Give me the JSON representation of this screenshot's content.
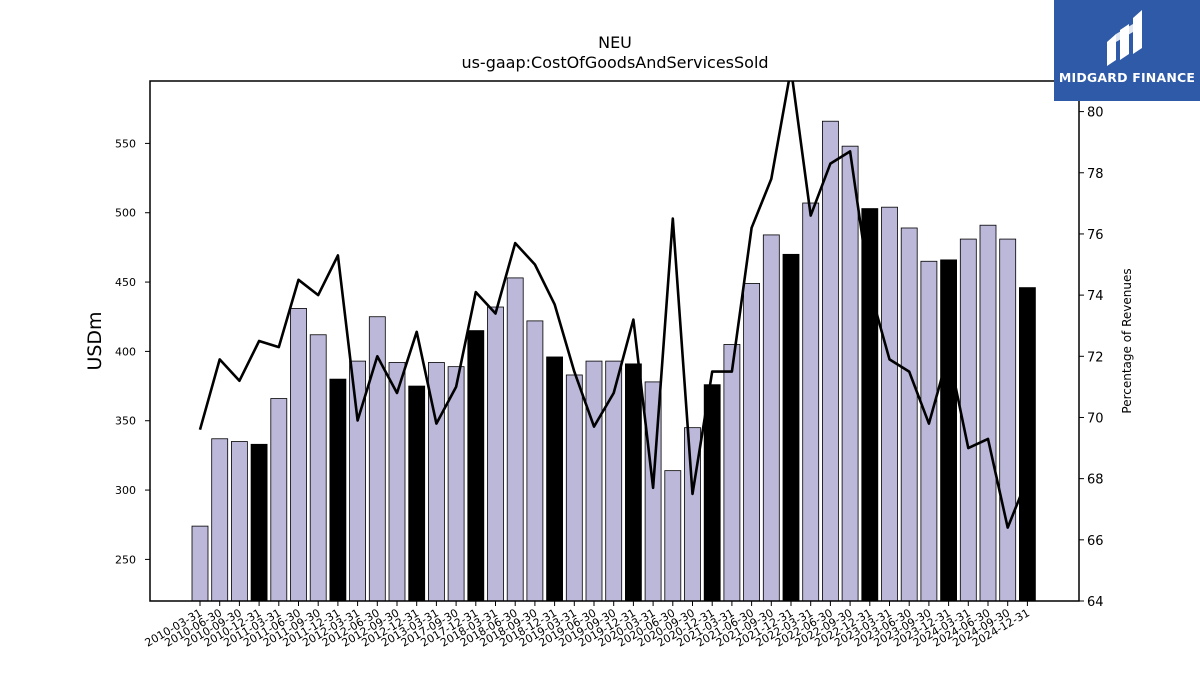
{
  "chart_data": {
    "type": "bar",
    "title": "NEU",
    "subtitle": "us-gaap:CostOfGoodsAndServicesSold",
    "ylabel": "USDm",
    "y2label": "Percentage of Revenues",
    "ylim": [
      220,
      595
    ],
    "y2lim": [
      64,
      81
    ],
    "yticks": [
      250,
      300,
      350,
      400,
      450,
      500,
      550
    ],
    "y2ticks": [
      64,
      66,
      68,
      70,
      72,
      74,
      76,
      78,
      80
    ],
    "categories": [
      "2010-03-31",
      "2010-06-30",
      "2010-09-30",
      "2010-12-31",
      "2011-03-31",
      "2011-06-30",
      "2011-09-30",
      "2011-12-31",
      "2012-03-31",
      "2012-06-30",
      "2012-09-30",
      "2012-12-31",
      "2013-03-31",
      "2017-09-30",
      "2017-12-31",
      "2018-03-31",
      "2018-06-30",
      "2018-09-30",
      "2018-12-31",
      "2019-03-31",
      "2019-06-30",
      "2019-09-30",
      "2019-12-31",
      "2020-03-31",
      "2020-06-30",
      "2020-09-30",
      "2020-12-31",
      "2021-03-31",
      "2021-06-30",
      "2021-09-30",
      "2021-12-31",
      "2022-03-31",
      "2022-06-30",
      "2022-09-30",
      "2022-12-31",
      "2023-03-31",
      "2023-06-30",
      "2023-09-30",
      "2023-12-31",
      "2024-03-31",
      "2024-06-30",
      "2024-09-30",
      "2024-12-31"
    ],
    "series": [
      {
        "kind": "bar",
        "values": [
          274,
          337,
          335,
          333,
          366,
          431,
          412,
          380,
          393,
          425,
          392,
          375,
          392,
          389,
          415,
          432,
          453,
          422,
          396,
          383,
          393,
          393,
          391,
          378,
          314,
          345,
          376,
          405,
          449,
          484,
          470,
          507,
          566,
          548,
          503,
          504,
          489,
          465,
          466,
          481,
          491,
          481,
          446
        ],
        "highlight": [
          false,
          false,
          false,
          true,
          false,
          false,
          false,
          true,
          false,
          false,
          false,
          true,
          false,
          false,
          true,
          false,
          false,
          false,
          true,
          false,
          false,
          false,
          true,
          false,
          false,
          false,
          true,
          false,
          false,
          false,
          true,
          false,
          false,
          false,
          true,
          false,
          false,
          false,
          true,
          false,
          false,
          false,
          true
        ]
      },
      {
        "kind": "line",
        "axis": "right",
        "values": [
          69.6,
          71.9,
          71.2,
          72.5,
          72.3,
          74.5,
          74.0,
          75.3,
          69.9,
          72.0,
          70.8,
          72.8,
          69.8,
          71.0,
          74.1,
          73.4,
          75.7,
          75.0,
          73.7,
          71.5,
          69.7,
          70.8,
          73.2,
          67.7,
          76.5,
          67.5,
          71.5,
          71.5,
          76.2,
          77.8,
          81.4,
          76.6,
          78.3,
          78.7,
          74.2,
          71.9,
          71.5,
          69.8,
          72.1,
          69.0,
          69.3,
          66.4,
          68.0
        ]
      }
    ],
    "colors": {
      "bar": "#bcb8d9",
      "bar_highlight": "#000000",
      "line": "#000000"
    },
    "grid": false
  },
  "logo": {
    "text": "MIDGARD FINANCE"
  }
}
